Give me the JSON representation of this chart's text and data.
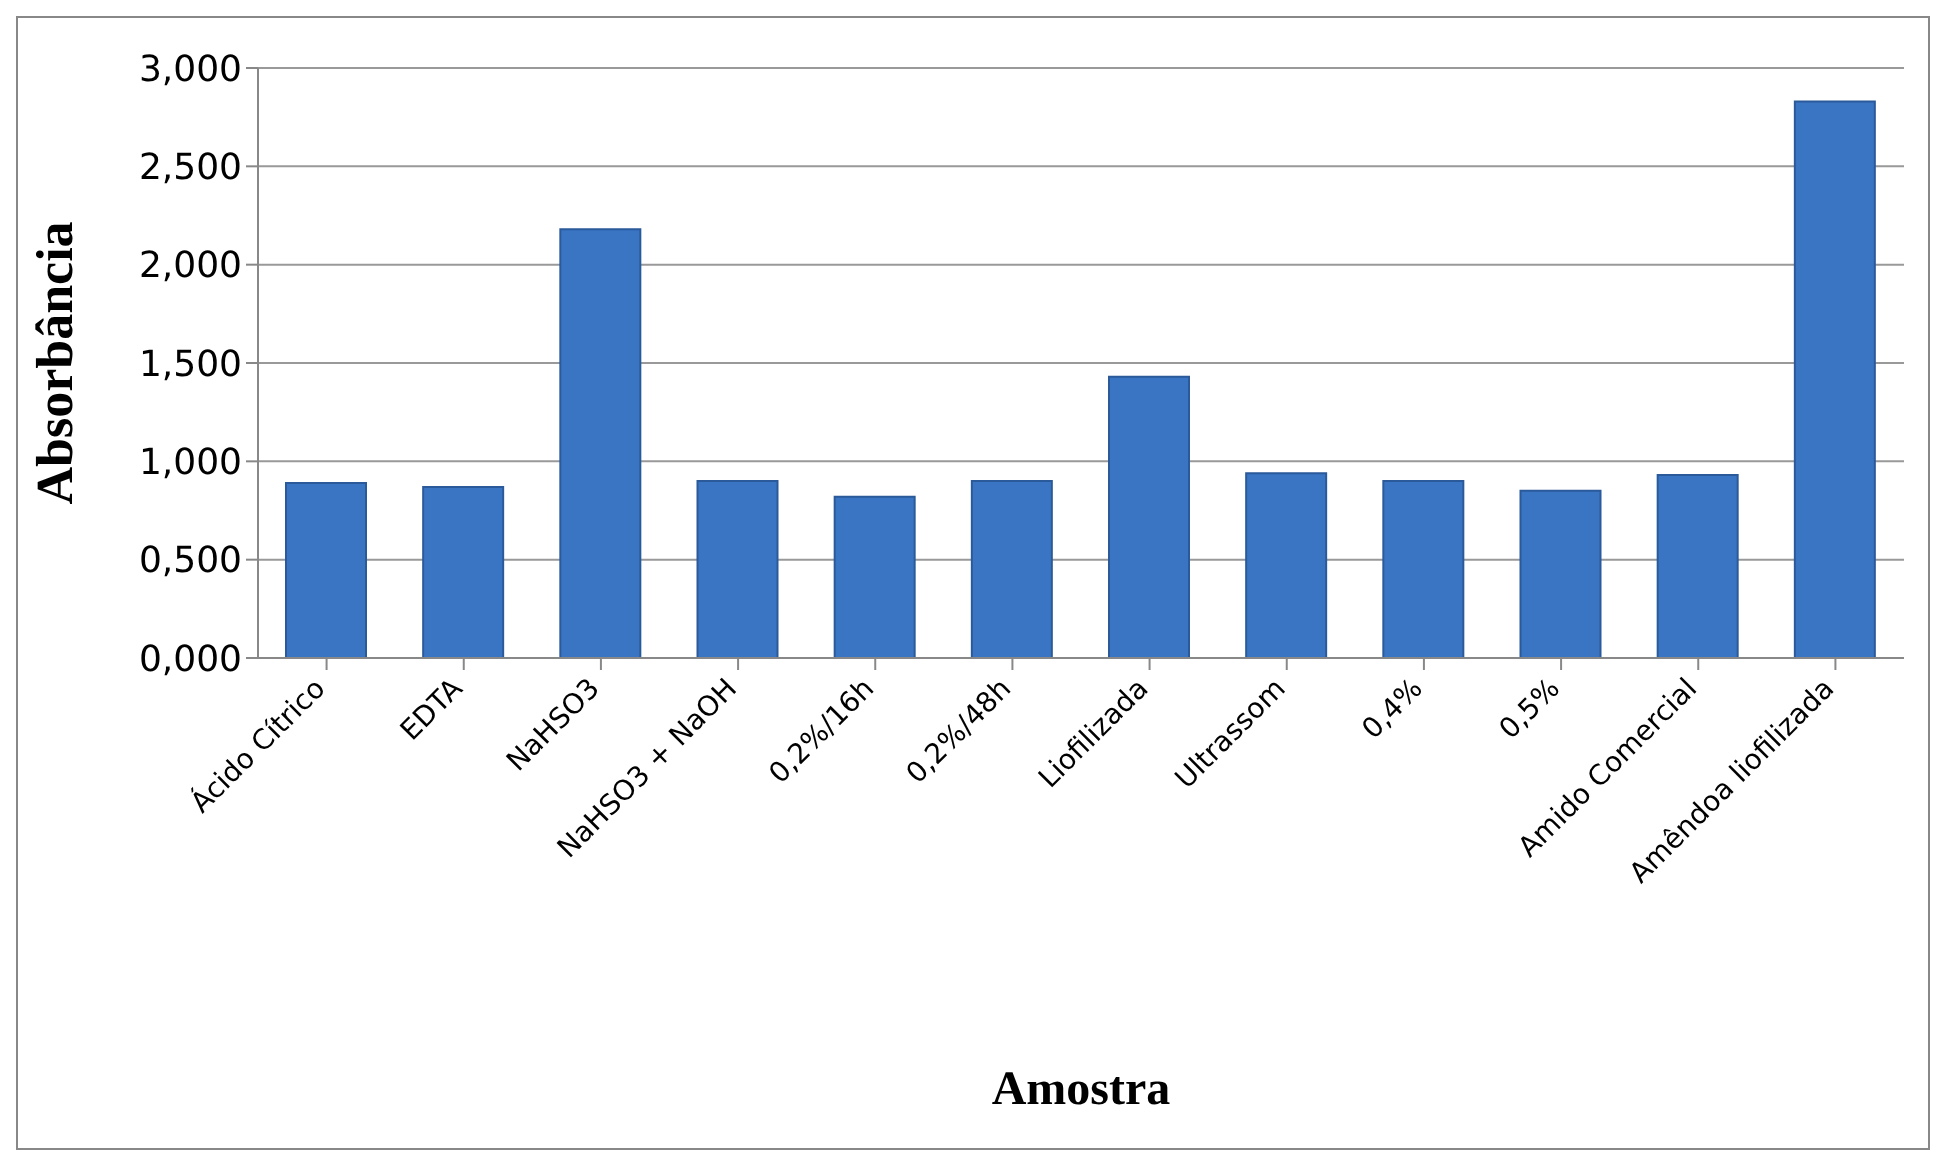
{
  "chart_data": {
    "type": "bar",
    "xlabel": "Amostra",
    "ylabel": "Absorbância",
    "categories": [
      "Ácido Cítrico",
      "EDTA",
      "NaHSO3",
      "NaHSO3 + NaOH",
      "0,2%/16h",
      "0,2%/48h",
      "Liofilizada",
      "Ultrassom",
      "0,4%",
      "0,5%",
      "Amido Comercial",
      "Amêndoa liofilizada"
    ],
    "values": [
      0.89,
      0.87,
      2.18,
      0.9,
      0.82,
      0.9,
      1.43,
      0.94,
      0.9,
      0.85,
      0.93,
      2.83
    ],
    "color": "#3a75c4",
    "ylim": [
      0,
      3
    ],
    "yticks": [
      {
        "value": 0,
        "label": "0,000"
      },
      {
        "value": 0.5,
        "label": "0,500"
      },
      {
        "value": 1,
        "label": "1,000"
      },
      {
        "value": 1.5,
        "label": "1,500"
      },
      {
        "value": 2,
        "label": "2,000"
      },
      {
        "value": 2.5,
        "label": "2,500"
      },
      {
        "value": 3,
        "label": "3,000"
      }
    ],
    "grid": "y",
    "legend": false
  }
}
